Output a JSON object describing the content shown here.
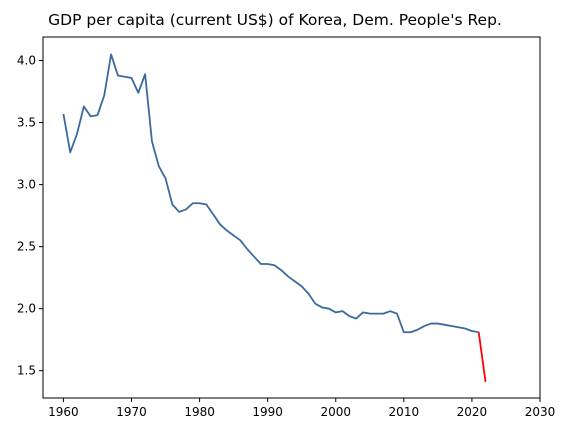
{
  "chart_data": {
    "type": "line",
    "title": "GDP per capita (current US$) of Korea, Dem. People's Rep.",
    "xlabel": "",
    "ylabel": "",
    "xlim": [
      1957,
      2030
    ],
    "ylim": [
      1.28,
      4.19
    ],
    "x_ticks": [
      1960,
      1970,
      1980,
      1990,
      2000,
      2010,
      2020,
      2030
    ],
    "y_ticks": [
      1.5,
      2.0,
      2.5,
      3.0,
      3.5,
      4.0
    ],
    "x_tick_labels": [
      "1960",
      "1970",
      "1980",
      "1990",
      "2000",
      "2010",
      "2020",
      "2030"
    ],
    "y_tick_labels": [
      "1.5",
      "2.0",
      "2.5",
      "3.0",
      "3.5",
      "4.0"
    ],
    "grid": false,
    "series": [
      {
        "color": "#3b6aa0",
        "x": [
          1960,
          1961,
          1962,
          1963,
          1964,
          1965,
          1966,
          1967,
          1968,
          1969,
          1970,
          1971,
          1972,
          1973,
          1974,
          1975,
          1976,
          1977,
          1978,
          1979,
          1980,
          1981,
          1982,
          1983,
          1984,
          1985,
          1986,
          1987,
          1988,
          1989,
          1990,
          1991,
          1992,
          1993,
          1994,
          1995,
          1996,
          1997,
          1998,
          1999,
          2000,
          2001,
          2002,
          2003,
          2004,
          2005,
          2006,
          2007,
          2008,
          2009,
          2010,
          2011,
          2012,
          2013,
          2014,
          2015,
          2016,
          2017,
          2018,
          2019,
          2020,
          2021
        ],
        "y": [
          3.57,
          3.26,
          3.41,
          3.63,
          3.55,
          3.56,
          3.72,
          4.05,
          3.88,
          3.87,
          3.86,
          3.74,
          3.89,
          3.35,
          3.15,
          3.05,
          2.84,
          2.78,
          2.8,
          2.85,
          2.85,
          2.84,
          2.76,
          2.68,
          2.63,
          2.59,
          2.55,
          2.48,
          2.42,
          2.36,
          2.36,
          2.35,
          2.31,
          2.26,
          2.22,
          2.18,
          2.12,
          2.04,
          2.01,
          2.0,
          1.97,
          1.98,
          1.94,
          1.92,
          1.97,
          1.96,
          1.96,
          1.96,
          1.98,
          1.96,
          1.81,
          1.81,
          1.83,
          1.86,
          1.88,
          1.88,
          1.87,
          1.86,
          1.85,
          1.84,
          1.82,
          1.81
        ]
      },
      {
        "color": "#ff0000",
        "x": [
          2021,
          2022
        ],
        "y": [
          1.81,
          1.41
        ]
      }
    ]
  }
}
